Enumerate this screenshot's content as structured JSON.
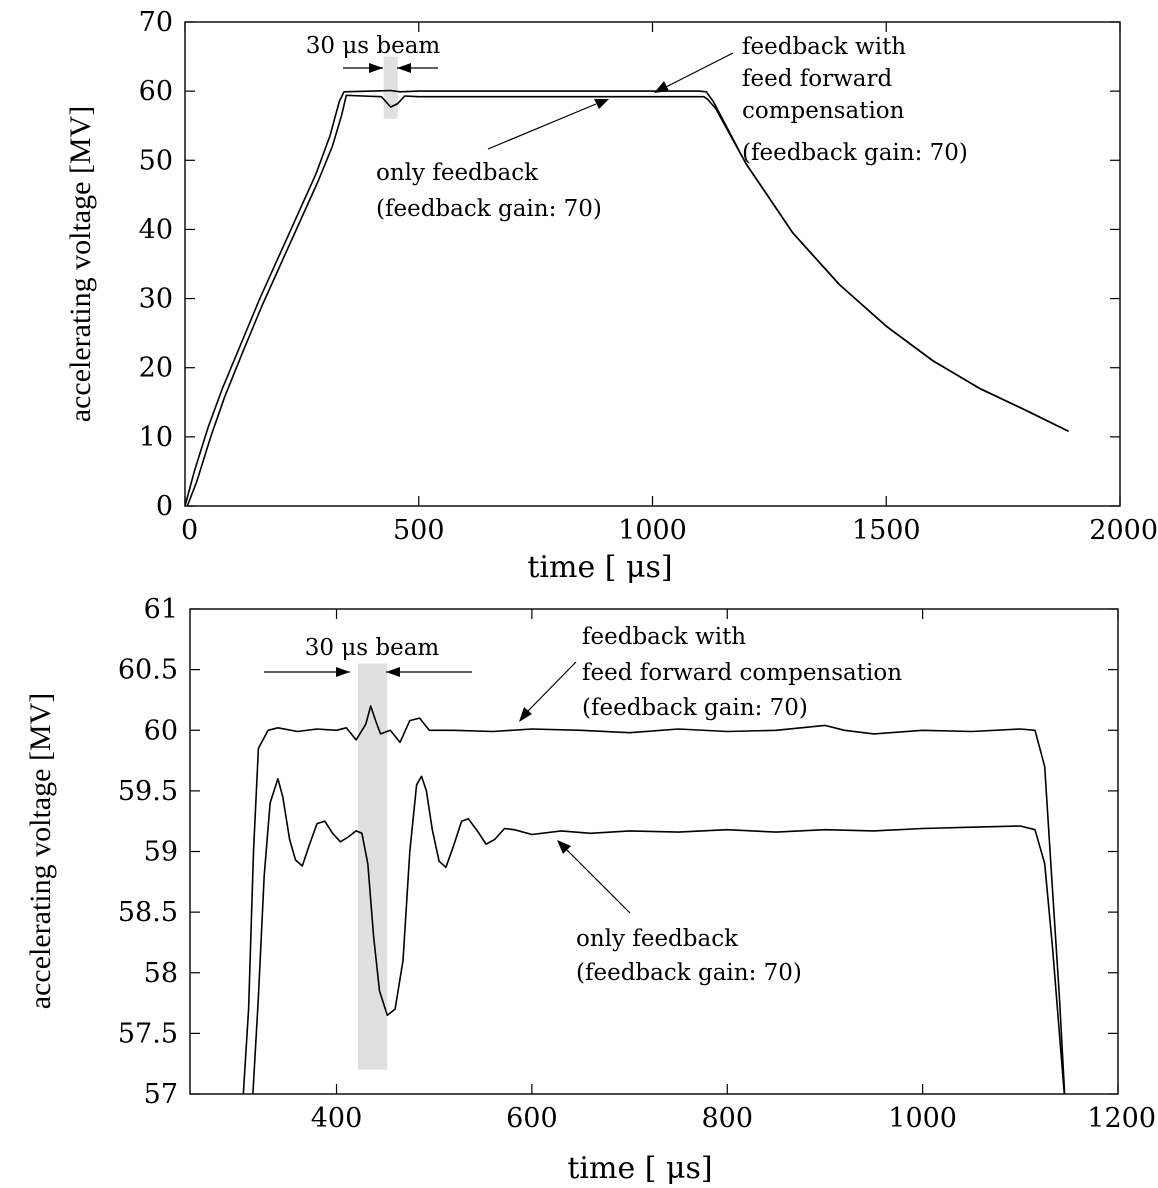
{
  "chart_data": [
    {
      "type": "line",
      "id": "full-pulse",
      "xlabel": "time [ μs]",
      "ylabel": "accelerating voltage [MV]",
      "xlim": [
        0,
        2000
      ],
      "ylim": [
        0,
        70
      ],
      "x_ticks": [
        0,
        500,
        1000,
        1500,
        2000
      ],
      "y_ticks": [
        0,
        10,
        20,
        30,
        40,
        50,
        60,
        70
      ],
      "grid": false,
      "beam": {
        "label": "30 μs beam",
        "x_start": 425,
        "x_end": 455,
        "y_start": 56,
        "y_end": 65
      },
      "series": [
        {
          "key": "feedforward",
          "values": [
            [
              0,
              0
            ],
            [
              20,
              5
            ],
            [
              50,
              11.5
            ],
            [
              80,
              17
            ],
            [
              120,
              23.5
            ],
            [
              160,
              30
            ],
            [
              200,
              36
            ],
            [
              240,
              42
            ],
            [
              280,
              48
            ],
            [
              310,
              53.5
            ],
            [
              330,
              58.5
            ],
            [
              340,
              59.9
            ],
            [
              400,
              60
            ],
            [
              440,
              60.1
            ],
            [
              460,
              59.9
            ],
            [
              500,
              60
            ],
            [
              700,
              60
            ],
            [
              900,
              60
            ],
            [
              1000,
              60
            ],
            [
              1100,
              60
            ],
            [
              1115,
              59.9
            ],
            [
              1130,
              58.5
            ],
            [
              1200,
              49.5
            ],
            [
              1300,
              39.5
            ],
            [
              1400,
              32
            ],
            [
              1500,
              26
            ],
            [
              1600,
              21
            ],
            [
              1700,
              17
            ],
            [
              1800,
              13.8
            ],
            [
              1890,
              10.8
            ]
          ]
        },
        {
          "key": "feedback-only",
          "values": [
            [
              5,
              0
            ],
            [
              25,
              3.5
            ],
            [
              55,
              10
            ],
            [
              85,
              15.8
            ],
            [
              125,
              22.5
            ],
            [
              165,
              29
            ],
            [
              205,
              35
            ],
            [
              245,
              41
            ],
            [
              285,
              47
            ],
            [
              315,
              52
            ],
            [
              335,
              56.5
            ],
            [
              345,
              59.4
            ],
            [
              380,
              59.3
            ],
            [
              420,
              59.2
            ],
            [
              440,
              57.7
            ],
            [
              455,
              58.2
            ],
            [
              470,
              59.3
            ],
            [
              500,
              59.2
            ],
            [
              700,
              59.2
            ],
            [
              900,
              59.2
            ],
            [
              1000,
              59.2
            ],
            [
              1110,
              59.2
            ],
            [
              1118,
              58.8
            ],
            [
              1135,
              57.5
            ],
            [
              1200,
              49.5
            ],
            [
              1300,
              39.5
            ],
            [
              1400,
              32
            ],
            [
              1500,
              26
            ],
            [
              1600,
              21
            ],
            [
              1700,
              17
            ],
            [
              1800,
              13.8
            ],
            [
              1890,
              10.8
            ]
          ]
        }
      ],
      "annotations": [
        {
          "key": "ff",
          "lines": [
            "feedback with",
            "feed forward",
            "compensation",
            "(feedback gain: 70)"
          ]
        },
        {
          "key": "fb",
          "lines": [
            "only feedback",
            "(feedback gain: 70)"
          ]
        }
      ]
    },
    {
      "type": "line",
      "id": "zoom",
      "xlabel": "time [ μs]",
      "ylabel": "accelerating voltage [MV]",
      "xlim": [
        250,
        1200
      ],
      "ylim": [
        57,
        61
      ],
      "x_ticks": [
        400,
        600,
        800,
        1000,
        1200
      ],
      "y_ticks": [
        57,
        57.5,
        58,
        58.5,
        59,
        59.5,
        60,
        60.5,
        61
      ],
      "grid": false,
      "beam": {
        "label": "30 μs beam",
        "x_start": 422,
        "x_end": 452,
        "y_start": 57.2,
        "y_end": 60.55
      },
      "series": [
        {
          "key": "feedforward",
          "values": [
            [
              303,
              56.8
            ],
            [
              310,
              57.7
            ],
            [
              315,
              59.0
            ],
            [
              320,
              59.85
            ],
            [
              330,
              60.0
            ],
            [
              340,
              60.02
            ],
            [
              360,
              59.99
            ],
            [
              380,
              60.01
            ],
            [
              400,
              60.0
            ],
            [
              410,
              60.02
            ],
            [
              420,
              59.92
            ],
            [
              430,
              60.05
            ],
            [
              435,
              60.2
            ],
            [
              440,
              60.08
            ],
            [
              445,
              59.97
            ],
            [
              455,
              60.0
            ],
            [
              465,
              59.9
            ],
            [
              475,
              60.08
            ],
            [
              485,
              60.1
            ],
            [
              495,
              60.0
            ],
            [
              520,
              60.0
            ],
            [
              560,
              59.99
            ],
            [
              600,
              60.01
            ],
            [
              650,
              60.0
            ],
            [
              700,
              59.98
            ],
            [
              750,
              60.01
            ],
            [
              800,
              59.99
            ],
            [
              850,
              60.0
            ],
            [
              900,
              60.04
            ],
            [
              920,
              60.0
            ],
            [
              950,
              59.97
            ],
            [
              1000,
              60.0
            ],
            [
              1050,
              59.99
            ],
            [
              1100,
              60.01
            ],
            [
              1115,
              60.0
            ],
            [
              1125,
              59.7
            ],
            [
              1132,
              58.8
            ],
            [
              1140,
              57.8
            ],
            [
              1146,
              56.9
            ]
          ]
        },
        {
          "key": "feedback-only",
          "values": [
            [
              313,
              56.8
            ],
            [
              320,
              57.8
            ],
            [
              326,
              58.8
            ],
            [
              332,
              59.4
            ],
            [
              340,
              59.6
            ],
            [
              345,
              59.45
            ],
            [
              352,
              59.1
            ],
            [
              358,
              58.93
            ],
            [
              365,
              58.88
            ],
            [
              372,
              59.05
            ],
            [
              380,
              59.23
            ],
            [
              388,
              59.25
            ],
            [
              396,
              59.15
            ],
            [
              404,
              59.08
            ],
            [
              412,
              59.12
            ],
            [
              420,
              59.17
            ],
            [
              426,
              59.15
            ],
            [
              432,
              58.9
            ],
            [
              438,
              58.3
            ],
            [
              444,
              57.85
            ],
            [
              452,
              57.65
            ],
            [
              460,
              57.7
            ],
            [
              468,
              58.1
            ],
            [
              475,
              59.0
            ],
            [
              482,
              59.55
            ],
            [
              487,
              59.62
            ],
            [
              492,
              59.5
            ],
            [
              498,
              59.18
            ],
            [
              505,
              58.92
            ],
            [
              512,
              58.87
            ],
            [
              520,
              59.05
            ],
            [
              528,
              59.25
            ],
            [
              535,
              59.27
            ],
            [
              545,
              59.16
            ],
            [
              553,
              59.06
            ],
            [
              562,
              59.1
            ],
            [
              572,
              59.19
            ],
            [
              582,
              59.18
            ],
            [
              600,
              59.14
            ],
            [
              630,
              59.17
            ],
            [
              660,
              59.15
            ],
            [
              700,
              59.17
            ],
            [
              750,
              59.16
            ],
            [
              800,
              59.18
            ],
            [
              850,
              59.16
            ],
            [
              900,
              59.18
            ],
            [
              950,
              59.17
            ],
            [
              1000,
              59.19
            ],
            [
              1050,
              59.2
            ],
            [
              1100,
              59.21
            ],
            [
              1115,
              59.18
            ],
            [
              1125,
              58.9
            ],
            [
              1133,
              58.2
            ],
            [
              1140,
              57.5
            ],
            [
              1146,
              56.9
            ]
          ]
        }
      ],
      "annotations": [
        {
          "key": "ff",
          "lines": [
            "feedback with",
            "feed forward compensation",
            "(feedback gain: 70)"
          ]
        },
        {
          "key": "fb",
          "lines": [
            "only feedback",
            "(feedback gain: 70)"
          ]
        }
      ]
    }
  ]
}
